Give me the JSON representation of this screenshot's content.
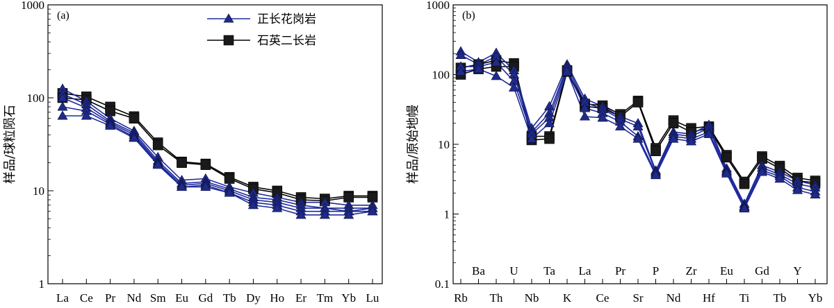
{
  "chart_data": [
    {
      "type": "line",
      "panel_label": "(a)",
      "ylabel": "样品/球粒陨石",
      "y_scale": "log",
      "ylim": [
        1,
        1000
      ],
      "y_ticks": [
        "1",
        "10",
        "100",
        "1000"
      ],
      "categories": [
        "La",
        "Ce",
        "Pr",
        "Nd",
        "Sm",
        "Eu",
        "Gd",
        "Tb",
        "Dy",
        "Ho",
        "Er",
        "Tm",
        "Yb",
        "Lu"
      ],
      "legend": {
        "placement": "top-center",
        "entries": [
          {
            "name": "正长花岗岩",
            "marker": "triangle",
            "color": "#1f2a8a"
          },
          {
            "name": "石英二长岩",
            "marker": "square",
            "color": "#000000"
          }
        ]
      },
      "series": [
        {
          "group": "正长花岗岩",
          "values": [
            125,
            92,
            60,
            44,
            23,
            13,
            13.5,
            11,
            9.5,
            8.5,
            7.5,
            7.5,
            7,
            7
          ]
        },
        {
          "group": "正长花岗岩",
          "values": [
            110,
            85,
            56,
            42,
            21,
            12,
            12.5,
            10.5,
            8.5,
            8,
            7,
            6.5,
            6.5,
            6.5
          ]
        },
        {
          "group": "正长花岗岩",
          "values": [
            100,
            78,
            54,
            40,
            20,
            11.5,
            12,
            10,
            8,
            7.5,
            6.5,
            6.5,
            6,
            6.5
          ]
        },
        {
          "group": "正长花岗岩",
          "values": [
            80,
            72,
            52,
            38,
            19.5,
            11,
            11.5,
            9.5,
            7.5,
            7,
            6,
            6,
            6,
            6
          ]
        },
        {
          "group": "正长花岗岩",
          "values": [
            64,
            64,
            50,
            37,
            19,
            11,
            11,
            9.5,
            7,
            6.5,
            5.5,
            5.5,
            5.5,
            6
          ]
        },
        {
          "group": "石英二长岩",
          "values": [
            112,
            103,
            80,
            63,
            33,
            20.5,
            19.5,
            14,
            11,
            10,
            8.5,
            8.2,
            8.8,
            8.8
          ]
        },
        {
          "group": "石英二长岩",
          "values": [
            100,
            95,
            72,
            60,
            31,
            20,
            19,
            13.5,
            10.5,
            9.5,
            8,
            7.8,
            8.5,
            8.5
          ]
        }
      ]
    },
    {
      "type": "line",
      "panel_label": "(b)",
      "ylabel": "样品/原始地幔",
      "y_scale": "log",
      "ylim": [
        0.1,
        1000
      ],
      "y_ticks": [
        "0.1",
        "1",
        "10",
        "100",
        "1000"
      ],
      "categories": [
        "Rb",
        "Ba",
        "Th",
        "U",
        "Nb",
        "Ta",
        "K",
        "La",
        "Ce",
        "Pr",
        "Sr",
        "P",
        "Nd",
        "Zr",
        "Hf",
        "Eu",
        "Ti",
        "Gd",
        "Tb",
        "Y",
        "Yb"
      ],
      "upper_labels": [
        "Ba",
        "U",
        "Ta",
        "La",
        "Pr",
        "P",
        "Zr",
        "Eu",
        "Gd",
        "Y"
      ],
      "lower_labels": [
        "Rb",
        "Th",
        "Nb",
        "K",
        "Ce",
        "Sr",
        "Nd",
        "Hf",
        "Ti",
        "Tb",
        "Yb"
      ],
      "series": [
        {
          "group": "正长花岗岩",
          "values": [
            215,
            150,
            205,
            115,
            17,
            35,
            140,
            45,
            35,
            25,
            20,
            4.2,
            15,
            14,
            19,
            4.5,
            1.4,
            5,
            4,
            3,
            2.6
          ]
        },
        {
          "group": "正长花岗岩",
          "values": [
            190,
            140,
            180,
            100,
            15,
            28,
            130,
            40,
            32,
            23,
            18,
            4,
            14,
            13,
            17,
            4.2,
            1.3,
            4.6,
            3.7,
            2.7,
            2.4
          ]
        },
        {
          "group": "正长花岗岩",
          "values": [
            130,
            130,
            150,
            80,
            14,
            24,
            120,
            33,
            28,
            21,
            13,
            3.8,
            13,
            12,
            15,
            4,
            1.25,
            4.2,
            3.5,
            2.4,
            2.1
          ]
        },
        {
          "group": "正长花岗岩",
          "values": [
            110,
            120,
            95,
            65,
            12,
            20,
            110,
            25,
            24,
            18,
            12,
            3.6,
            12,
            11,
            14,
            3.8,
            1.2,
            4,
            3.2,
            2.2,
            1.9
          ]
        },
        {
          "group": "石英二长岩",
          "values": [
            125,
            140,
            160,
            145,
            13,
            13,
            115,
            38,
            36,
            27,
            42,
            8.8,
            22,
            17,
            18,
            7,
            2.9,
            6.7,
            4.9,
            3.3,
            3
          ]
        },
        {
          "group": "石英二长岩",
          "values": [
            100,
            120,
            130,
            130,
            11.5,
            12,
            110,
            35,
            33,
            25,
            40,
            8,
            20,
            15,
            17,
            6.5,
            2.7,
            6.2,
            4.5,
            3,
            2.8
          ]
        }
      ]
    }
  ]
}
